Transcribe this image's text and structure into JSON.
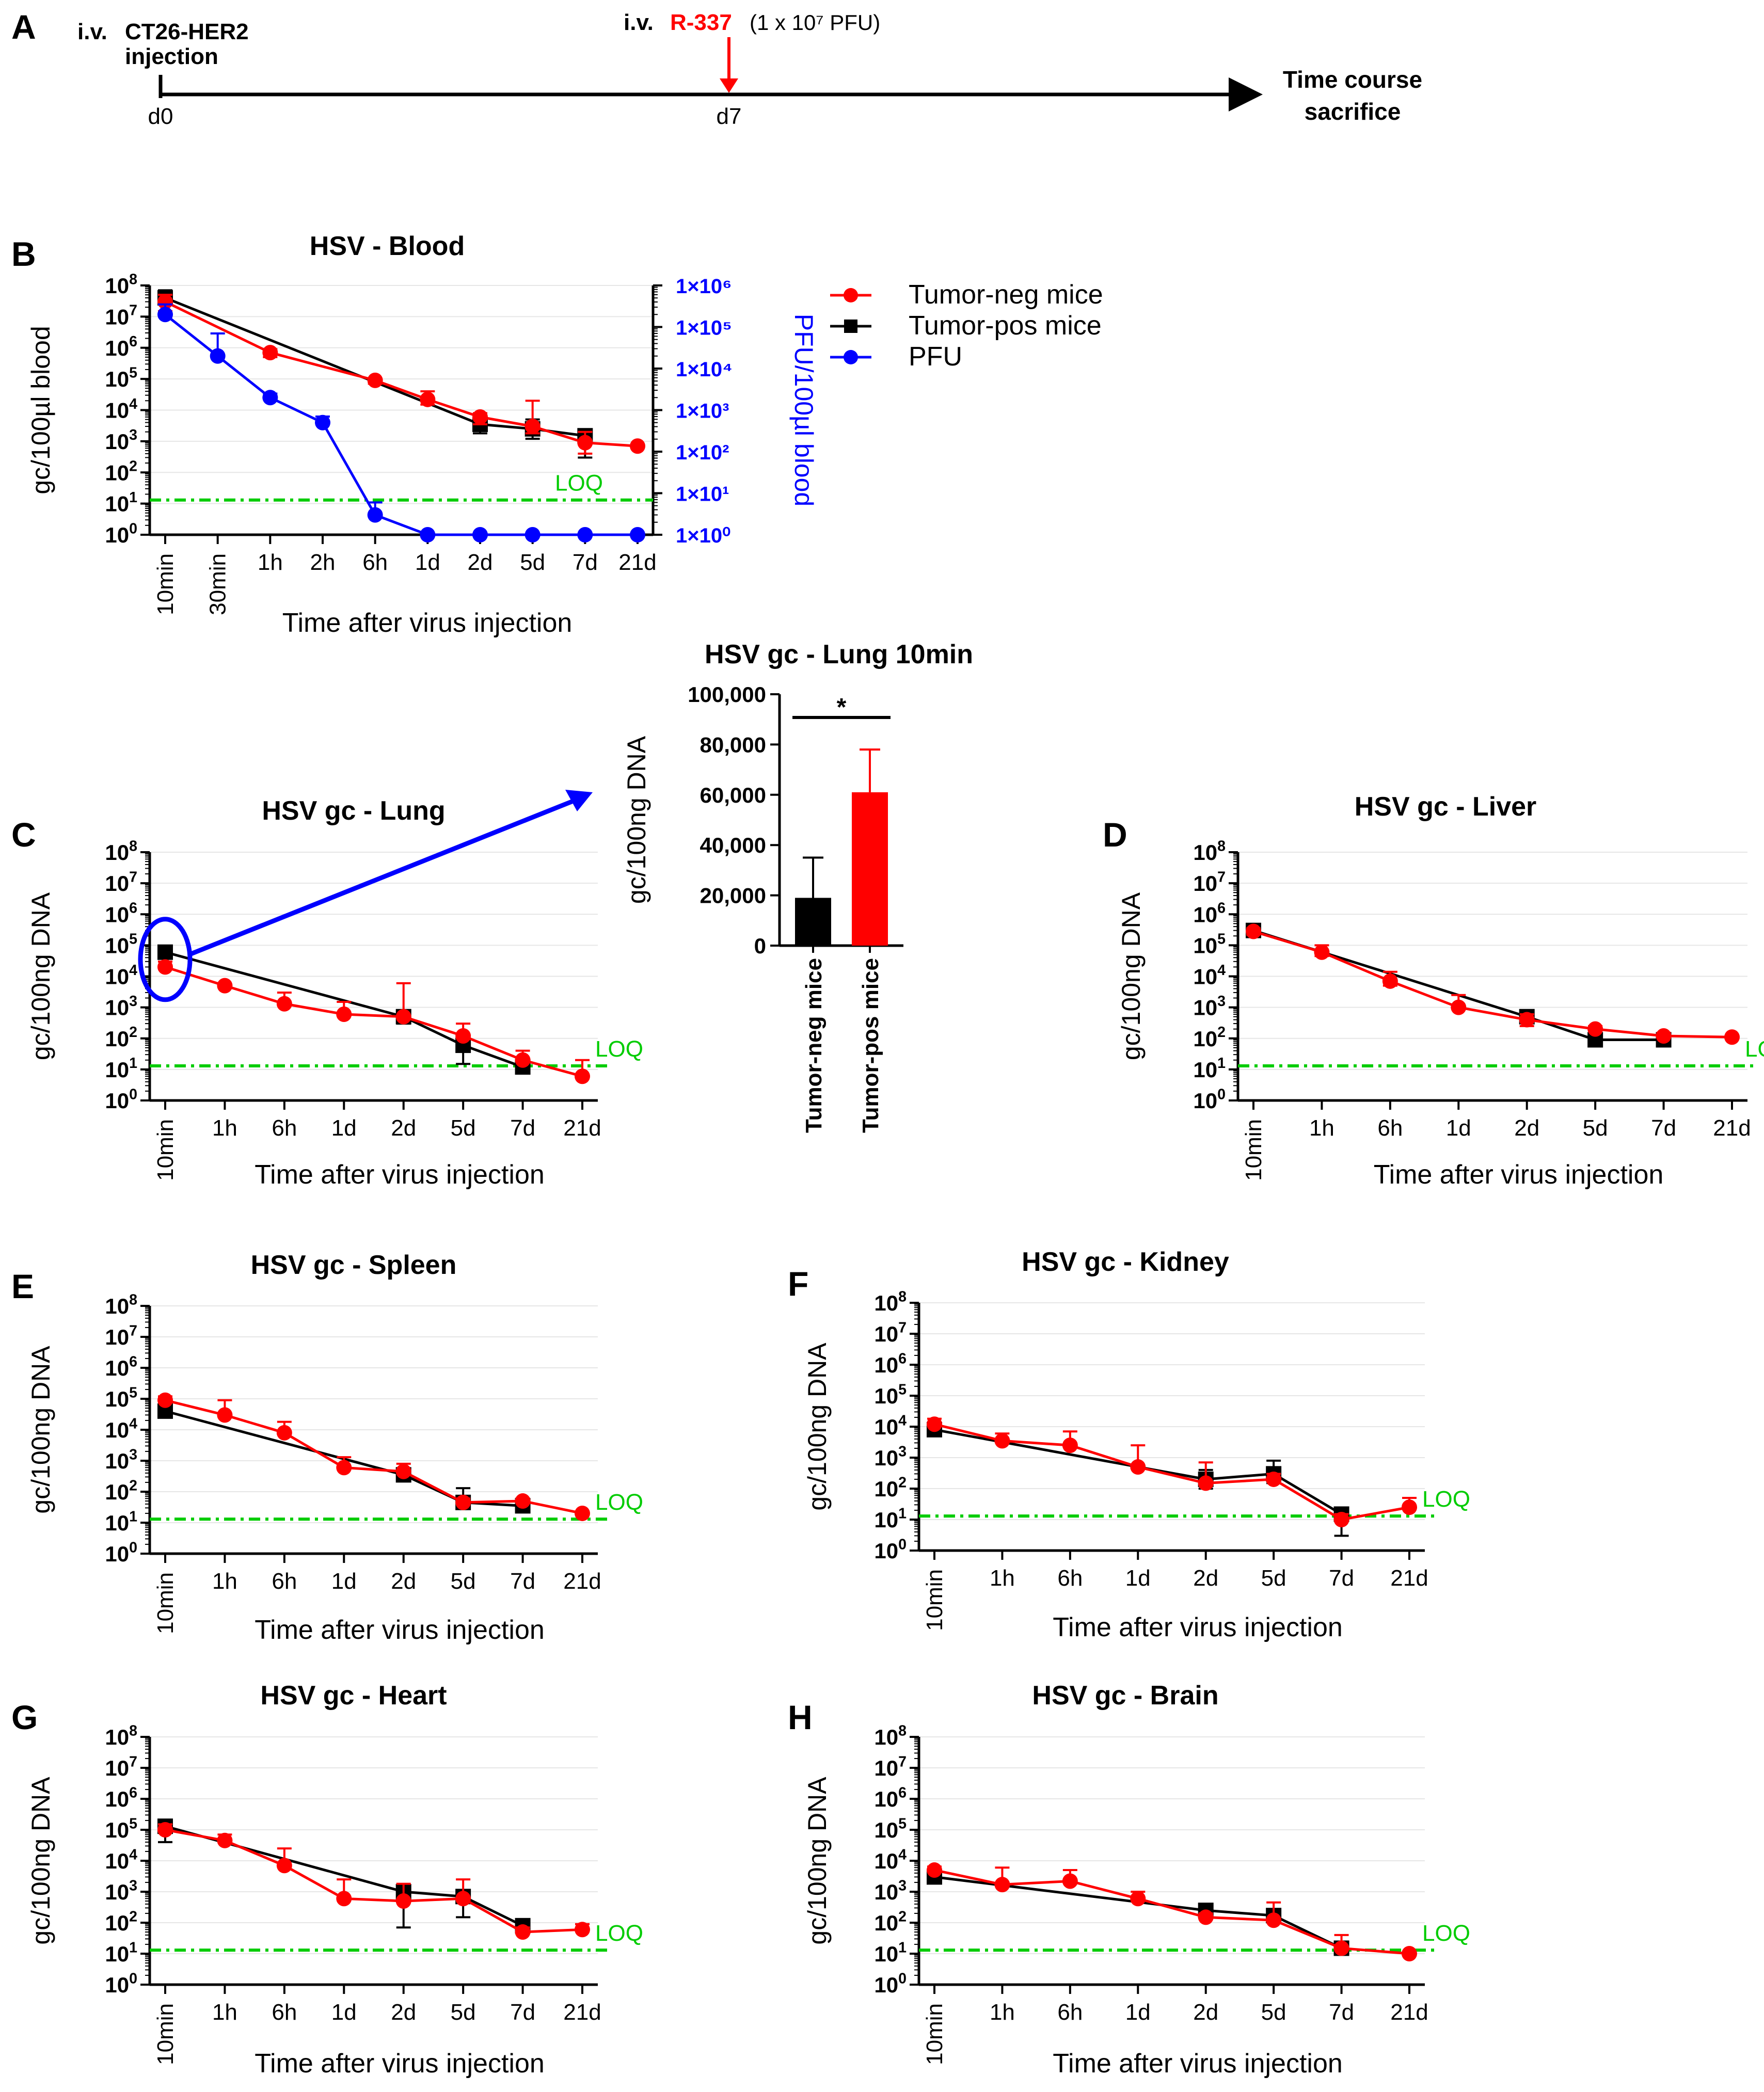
{
  "timeline": {
    "panel_letter": "A",
    "injection_prefix": "i.v.",
    "injection_line1": "CT26-HER2",
    "injection_line2": "injection",
    "treatment_prefix": "i.v.",
    "treatment_name": "R-337",
    "treatment_dose": "(1 x 10⁷ PFU)",
    "day0": "d0",
    "day7": "d7",
    "end_line1": "Time course",
    "end_line2": "sacrifice"
  },
  "legend": {
    "tumor_neg": "Tumor-neg mice",
    "tumor_pos": "Tumor-pos mice",
    "pfu": "PFU"
  },
  "colors": {
    "tumor_neg": "#ff0000",
    "tumor_pos": "#000000",
    "pfu": "#0000ff",
    "loq": "#00cc00"
  },
  "chart_data": [
    {
      "id": "B",
      "type": "line",
      "panel_letter": "B",
      "title": "HSV - Blood",
      "xlabel": "Time after virus injection",
      "ylabel": "gc/100µl blood",
      "y2label": "PFU/100µl blood",
      "yscale": "log",
      "ylim": [
        1,
        100000000
      ],
      "y2lim": [
        1,
        1000000
      ],
      "y2ticks": [
        "1×10⁶",
        "1×10⁵",
        "1×10⁴",
        "1×10³",
        "1×10²",
        "1×10¹",
        "1×10⁰"
      ],
      "loq": 13,
      "loq_label": "LOQ",
      "categories": [
        "10min",
        "30min",
        "1h",
        "2h",
        "6h",
        "1d",
        "2d",
        "5d",
        "7d",
        "21d"
      ],
      "series": [
        {
          "name": "Tumor-neg mice",
          "values": [
            30000000,
            null,
            700000,
            null,
            90000,
            22000,
            6000,
            3000,
            900,
            700
          ],
          "err_up": [
            50000000,
            null,
            900000,
            null,
            100000,
            40000,
            8000,
            20000,
            2000,
            null
          ],
          "err_down": [
            15000000,
            null,
            500000,
            null,
            70000,
            15000,
            3500,
            1800,
            400,
            null
          ]
        },
        {
          "name": "Tumor-pos mice",
          "values": [
            40000000,
            null,
            null,
            null,
            null,
            null,
            3500,
            2500,
            1500,
            null
          ],
          "err_up": [
            70000000,
            null,
            null,
            null,
            null,
            null,
            6000,
            5000,
            2000,
            null
          ],
          "err_down": [
            10000000,
            null,
            null,
            null,
            null,
            null,
            1800,
            1200,
            300,
            null
          ]
        },
        {
          "name": "PFU",
          "axis": "right",
          "values": [
            200000,
            20000,
            2000,
            500,
            3,
            1,
            1,
            1,
            1,
            1
          ],
          "err_up": [
            350000,
            70000,
            2500,
            700,
            6,
            null,
            null,
            null,
            null,
            null
          ],
          "err_down": [
            null,
            null,
            null,
            null,
            null,
            null,
            null,
            null,
            null,
            null
          ]
        }
      ]
    },
    {
      "id": "C",
      "type": "line",
      "panel_letter": "C",
      "title": "HSV gc - Lung",
      "xlabel": "Time after virus injection",
      "ylabel": "gc/100ng DNA",
      "yscale": "log",
      "ylim": [
        1,
        100000000
      ],
      "loq": 13,
      "loq_label": "LOQ",
      "categories": [
        "10min",
        "1h",
        "6h",
        "1d",
        "2d",
        "5d",
        "7d",
        "21d"
      ],
      "series": [
        {
          "name": "Tumor-neg mice",
          "values": [
            20000,
            5000,
            1300,
            600,
            500,
            120,
            20,
            6
          ],
          "err_up": [
            30000,
            null,
            3000,
            1500,
            6000,
            300,
            40,
            20
          ],
          "err_down": [
            null,
            null,
            null,
            null,
            null,
            null,
            null,
            null
          ]
        },
        {
          "name": "Tumor-pos mice",
          "values": [
            60000,
            null,
            null,
            null,
            500,
            60,
            12,
            null
          ],
          "err_up": [
            80000,
            null,
            null,
            null,
            600,
            120,
            20,
            null
          ],
          "err_down": [
            40000,
            null,
            null,
            null,
            300,
            15,
            8,
            null
          ]
        }
      ]
    },
    {
      "id": "C-inset",
      "type": "bar",
      "title": "HSV gc - Lung 10min",
      "ylabel": "gc/100ng  DNA",
      "ylim": [
        0,
        100000
      ],
      "yticks": [
        "0",
        "20,000",
        "40,000",
        "60,000",
        "80,000",
        "100,000"
      ],
      "categories": [
        "Tumor-neg mice",
        "Tumor-pos mice"
      ],
      "values": [
        19000,
        61000
      ],
      "err_up": [
        35000,
        78000
      ],
      "significance": "*"
    },
    {
      "id": "D",
      "type": "line",
      "panel_letter": "D",
      "title": "HSV gc - Liver",
      "xlabel": "Time after virus injection",
      "ylabel": "gc/100ng DNA",
      "yscale": "log",
      "ylim": [
        1,
        100000000
      ],
      "loq": 13,
      "loq_label": "LOQ",
      "categories": [
        "10min",
        "1h",
        "6h",
        "1d",
        "2d",
        "5d",
        "7d",
        "21d"
      ],
      "series": [
        {
          "name": "Tumor-neg mice",
          "values": [
            280000,
            60000,
            7000,
            1000,
            400,
            200,
            120,
            110
          ],
          "err_up": [
            350000,
            100000,
            14000,
            2500,
            600,
            250,
            150,
            null
          ],
          "err_down": [
            220000,
            45000,
            5000,
            null,
            250,
            null,
            null,
            null
          ]
        },
        {
          "name": "Tumor-pos mice",
          "values": [
            300000,
            null,
            null,
            null,
            500,
            90,
            90,
            null
          ],
          "err_up": [
            350000,
            null,
            null,
            null,
            600,
            100,
            120,
            null
          ],
          "err_down": [
            250000,
            null,
            null,
            null,
            400,
            80,
            70,
            null
          ]
        }
      ]
    },
    {
      "id": "E",
      "type": "line",
      "panel_letter": "E",
      "title": "HSV gc - Spleen",
      "xlabel": "Time after virus injection",
      "ylabel": "gc/100ng DNA",
      "yscale": "log",
      "ylim": [
        1,
        100000000
      ],
      "loq": 13,
      "loq_label": "LOQ",
      "categories": [
        "10min",
        "1h",
        "6h",
        "1d",
        "2d",
        "5d",
        "7d",
        "21d"
      ],
      "series": [
        {
          "name": "Tumor-neg mice",
          "values": [
            90000,
            30000,
            8000,
            600,
            450,
            45,
            50,
            20
          ],
          "err_up": [
            120000,
            90000,
            18000,
            1300,
            800,
            60,
            60,
            null
          ],
          "err_down": [
            null,
            null,
            null,
            null,
            null,
            null,
            null,
            null
          ]
        },
        {
          "name": "Tumor-pos mice",
          "values": [
            40000,
            null,
            null,
            null,
            350,
            45,
            35,
            null
          ],
          "err_up": [
            60000,
            null,
            null,
            null,
            500,
            130,
            50,
            null
          ],
          "err_down": [
            25000,
            null,
            null,
            null,
            250,
            30,
            25,
            null
          ]
        }
      ]
    },
    {
      "id": "F",
      "type": "line",
      "panel_letter": "F",
      "title": "HSV gc - Kidney",
      "xlabel": "Time after virus injection",
      "ylabel": "gc/100ng DNA",
      "yscale": "log",
      "ylim": [
        1,
        100000000
      ],
      "loq": 13,
      "loq_label": "LOQ",
      "categories": [
        "10min",
        "1h",
        "6h",
        "1d",
        "2d",
        "5d",
        "7d",
        "21d"
      ],
      "series": [
        {
          "name": "Tumor-neg mice",
          "values": [
            12000,
            3500,
            2500,
            500,
            150,
            200,
            10,
            25
          ],
          "err_up": [
            18000,
            6000,
            7000,
            2500,
            700,
            300,
            15,
            50
          ],
          "err_down": [
            null,
            null,
            null,
            null,
            null,
            null,
            null,
            null
          ]
        },
        {
          "name": "Tumor-pos mice",
          "values": [
            8000,
            null,
            null,
            null,
            200,
            300,
            15,
            null
          ],
          "err_up": [
            11000,
            null,
            null,
            null,
            400,
            800,
            20,
            null
          ],
          "err_down": [
            6000,
            null,
            null,
            null,
            100,
            150,
            3,
            null
          ]
        }
      ]
    },
    {
      "id": "G",
      "type": "line",
      "panel_letter": "G",
      "title": "HSV gc - Heart",
      "xlabel": "Time after virus injection",
      "ylabel": "gc/100ng DNA",
      "yscale": "log",
      "ylim": [
        1,
        100000000
      ],
      "loq": 13,
      "loq_label": "LOQ",
      "categories": [
        "10min",
        "1h",
        "6h",
        "1d",
        "2d",
        "5d",
        "7d",
        "21d"
      ],
      "series": [
        {
          "name": "Tumor-neg mice",
          "values": [
            100000,
            45000,
            7000,
            600,
            500,
            600,
            50,
            60
          ],
          "err_up": [
            150000,
            70000,
            25000,
            2500,
            1800,
            2500,
            70,
            90
          ],
          "err_down": [
            null,
            null,
            null,
            null,
            null,
            null,
            null,
            null
          ]
        },
        {
          "name": "Tumor-pos mice",
          "values": [
            130000,
            null,
            null,
            null,
            1000,
            700,
            80,
            null
          ],
          "err_up": [
            200000,
            null,
            null,
            null,
            1500,
            1000,
            100,
            null
          ],
          "err_down": [
            40000,
            null,
            null,
            null,
            70,
            150,
            60,
            null
          ]
        }
      ]
    },
    {
      "id": "H",
      "type": "line",
      "panel_letter": "H",
      "title": "HSV gc - Brain",
      "xlabel": "Time after virus injection",
      "ylabel": "gc/100ng DNA",
      "yscale": "log",
      "ylim": [
        1,
        100000000
      ],
      "loq": 13,
      "loq_label": "LOQ",
      "categories": [
        "10min",
        "1h",
        "6h",
        "1d",
        "2d",
        "5d",
        "7d",
        "21d"
      ],
      "series": [
        {
          "name": "Tumor-neg mice",
          "values": [
            5000,
            1700,
            2200,
            600,
            150,
            120,
            15,
            10
          ],
          "err_up": [
            6500,
            6000,
            5000,
            1000,
            200,
            450,
            40,
            null
          ],
          "err_down": [
            null,
            null,
            null,
            null,
            null,
            null,
            null,
            null
          ]
        },
        {
          "name": "Tumor-pos mice",
          "values": [
            3000,
            null,
            null,
            null,
            250,
            170,
            15,
            null
          ],
          "err_up": [
            4000,
            null,
            null,
            null,
            300,
            220,
            20,
            null
          ],
          "err_down": [
            2500,
            null,
            null,
            null,
            200,
            120,
            10,
            null
          ]
        }
      ]
    }
  ]
}
